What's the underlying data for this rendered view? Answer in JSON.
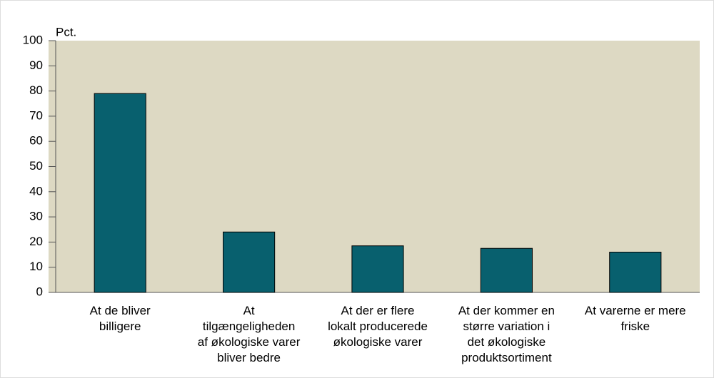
{
  "chart_data": {
    "type": "bar",
    "y_label": "Pct.",
    "categories": [
      [
        "At de bliver",
        "billigere"
      ],
      [
        "At",
        "tilgængeligheden",
        "af økologiske varer",
        "bliver bedre"
      ],
      [
        "At der er flere",
        "lokalt producerede",
        "økologiske varer"
      ],
      [
        "At der kommer en",
        "større variation i",
        "det økologiske",
        "produktsortiment"
      ],
      [
        "At varerne er mere",
        "friske"
      ]
    ],
    "values": [
      79,
      24,
      18.5,
      17.5,
      16
    ],
    "color": "#08606e",
    "plot_background": "#ddd9c3",
    "ylim": [
      0,
      100
    ],
    "yticks": [
      0,
      10,
      20,
      30,
      40,
      50,
      60,
      70,
      80,
      90,
      100
    ],
    "grid": false
  }
}
